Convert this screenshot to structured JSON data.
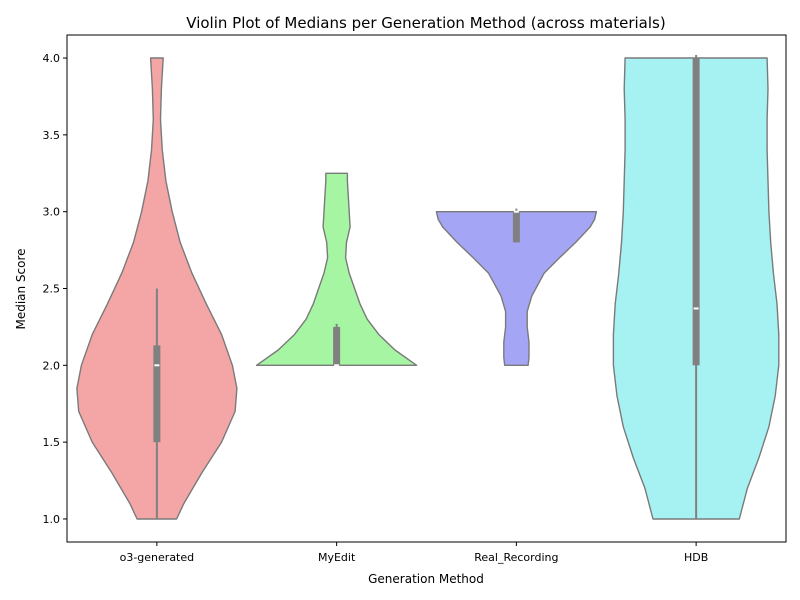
{
  "chart_data": {
    "type": "violin",
    "title": "Violin Plot of Medians per Generation Method (across materials)",
    "xlabel": "Generation Method",
    "ylabel": "Median Score",
    "ylim": [
      0.85,
      4.15
    ],
    "yticks": [
      1.0,
      1.5,
      2.0,
      2.5,
      3.0,
      3.5,
      4.0
    ],
    "ytick_labels": [
      "1.0",
      "1.5",
      "2.0",
      "2.5",
      "3.0",
      "3.5",
      "4.0"
    ],
    "grid": false,
    "legend": "none",
    "categories": [
      "o3-generated",
      "MyEdit",
      "Real_Recording",
      "HDB"
    ],
    "violins": [
      {
        "category": "o3-generated",
        "color": "#f4a6a6",
        "min": 1.0,
        "max": 4.0,
        "q1": 1.5,
        "median": 2.0,
        "q3": 2.13,
        "whisker_low": 1.0,
        "whisker_high": 2.5,
        "density": [
          [
            1.0,
            0.22
          ],
          [
            1.1,
            0.3
          ],
          [
            1.3,
            0.5
          ],
          [
            1.5,
            0.72
          ],
          [
            1.7,
            0.87
          ],
          [
            1.85,
            0.89
          ],
          [
            2.0,
            0.84
          ],
          [
            2.2,
            0.72
          ],
          [
            2.4,
            0.55
          ],
          [
            2.6,
            0.39
          ],
          [
            2.8,
            0.26
          ],
          [
            3.0,
            0.17
          ],
          [
            3.2,
            0.1
          ],
          [
            3.4,
            0.06
          ],
          [
            3.6,
            0.04
          ],
          [
            3.8,
            0.05
          ],
          [
            4.0,
            0.07
          ]
        ]
      },
      {
        "category": "MyEdit",
        "color": "#a5f5a2",
        "min": 2.0,
        "max": 3.25,
        "q1": 2.0,
        "median": 2.0,
        "q3": 2.25,
        "whisker_low": 2.0,
        "whisker_high": 2.27,
        "density": [
          [
            2.0,
            0.89
          ],
          [
            2.1,
            0.65
          ],
          [
            2.2,
            0.47
          ],
          [
            2.3,
            0.34
          ],
          [
            2.4,
            0.26
          ],
          [
            2.5,
            0.2
          ],
          [
            2.6,
            0.14
          ],
          [
            2.7,
            0.1
          ],
          [
            2.8,
            0.11
          ],
          [
            2.9,
            0.15
          ],
          [
            3.0,
            0.14
          ],
          [
            3.1,
            0.13
          ],
          [
            3.2,
            0.12
          ],
          [
            3.25,
            0.12
          ]
        ]
      },
      {
        "category": "Real_Recording",
        "color": "#a4a6f5",
        "min": 2.0,
        "max": 3.0,
        "q1": 2.8,
        "median": 3.0,
        "q3": 3.0,
        "whisker_low": 2.8,
        "whisker_high": 3.02,
        "density": [
          [
            2.0,
            0.13
          ],
          [
            2.05,
            0.14
          ],
          [
            2.15,
            0.14
          ],
          [
            2.25,
            0.12
          ],
          [
            2.35,
            0.12
          ],
          [
            2.45,
            0.17
          ],
          [
            2.6,
            0.31
          ],
          [
            2.7,
            0.48
          ],
          [
            2.8,
            0.66
          ],
          [
            2.9,
            0.82
          ],
          [
            2.95,
            0.87
          ],
          [
            3.0,
            0.89
          ]
        ]
      },
      {
        "category": "HDB",
        "color": "#a6f2f3",
        "min": 1.0,
        "max": 4.0,
        "q1": 2.0,
        "median": 2.37,
        "q3": 4.0,
        "whisker_low": 1.0,
        "whisker_high": 4.02,
        "density": [
          [
            1.0,
            0.48
          ],
          [
            1.2,
            0.57
          ],
          [
            1.4,
            0.7
          ],
          [
            1.6,
            0.81
          ],
          [
            1.8,
            0.88
          ],
          [
            2.0,
            0.92
          ],
          [
            2.2,
            0.92
          ],
          [
            2.4,
            0.9
          ],
          [
            2.6,
            0.86
          ],
          [
            2.8,
            0.83
          ],
          [
            3.0,
            0.81
          ],
          [
            3.2,
            0.8
          ],
          [
            3.4,
            0.79
          ],
          [
            3.6,
            0.79
          ],
          [
            3.8,
            0.8
          ],
          [
            4.0,
            0.79
          ]
        ]
      }
    ]
  }
}
